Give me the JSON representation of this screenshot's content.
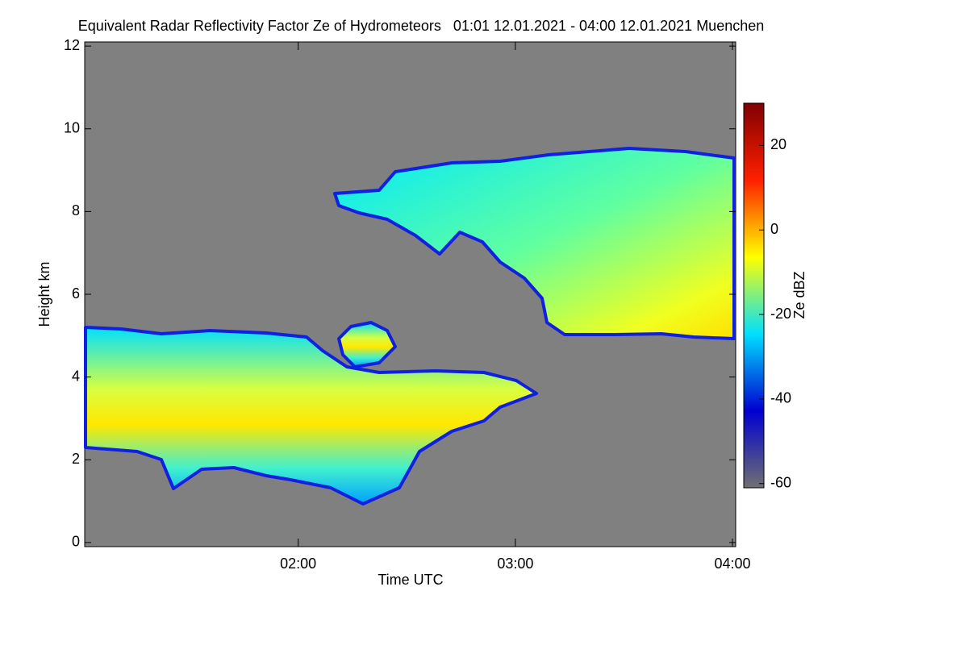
{
  "chart_data": {
    "type": "heatmap",
    "title": "Equivalent Radar Reflectivity Factor Ze of Hydrometeors   01:01 12.01.2021 - 04:00 12.01.2021 Muenchen",
    "x_label": "Time UTC",
    "y_label": "Height km",
    "colorbar_label": "Ze dBZ",
    "xlim": [
      61,
      240
    ],
    "xticks": [
      {
        "value": 120,
        "label": "02:00"
      },
      {
        "value": 180,
        "label": "03:00"
      },
      {
        "value": 240,
        "label": "04:00"
      }
    ],
    "ylim": [
      -0.1,
      12.1
    ],
    "yticks": [
      0,
      2,
      4,
      6,
      8,
      10,
      12
    ],
    "zlim": [
      -61,
      30
    ],
    "zticks": [
      -60,
      -40,
      -20,
      0,
      20
    ],
    "colormap": [
      "#707070",
      "#0000d0",
      "#00e0ff",
      "#ffff00",
      "#ff2000",
      "#800000"
    ],
    "background": "#808080"
  }
}
